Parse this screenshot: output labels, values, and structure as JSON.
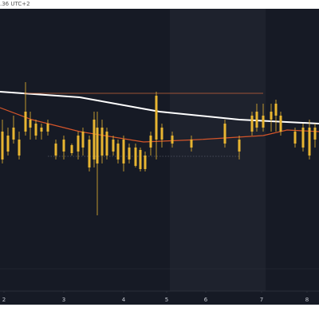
{
  "chart_data": {
    "type": "candlestick",
    "header": ".36 UTC+2",
    "xlim": [
      0,
      400
    ],
    "ylim": [
      0,
      372
    ],
    "xticks": [
      {
        "value": 5,
        "label": "2"
      },
      {
        "value": 80,
        "label": "3"
      },
      {
        "value": 155,
        "label": "4"
      },
      {
        "value": 209,
        "label": "5"
      },
      {
        "value": 258,
        "label": "6"
      },
      {
        "value": 328,
        "label": "7"
      },
      {
        "value": 385,
        "label": "8"
      }
    ],
    "color": "#e8b531",
    "x": [
      3,
      10,
      17,
      24,
      32,
      38,
      45,
      52,
      60,
      70,
      80,
      90,
      98,
      104,
      112,
      118,
      122,
      128,
      134,
      142,
      148,
      155,
      162,
      170,
      176,
      182,
      189,
      196,
      203,
      216,
      240,
      282,
      300,
      316,
      322,
      330,
      340,
      346,
      352,
      370,
      380,
      388,
      395
    ],
    "open": [
      217,
      212,
      222,
      207,
      242,
      232,
      227,
      222,
      227,
      202,
      207,
      200,
      212,
      217,
      207,
      232,
      222,
      222,
      217,
      207,
      202,
      207,
      197,
      197,
      194,
      187,
      212,
      262,
      222,
      212,
      207,
      227,
      207,
      237,
      242,
      237,
      242,
      252,
      237,
      217,
      222,
      222,
      222
    ],
    "high": [
      232,
      222,
      237,
      217,
      279,
      242,
      232,
      227,
      232,
      207,
      212,
      202,
      217,
      222,
      212,
      242,
      242,
      232,
      222,
      212,
      207,
      212,
      202,
      202,
      197,
      192,
      217,
      267,
      227,
      217,
      212,
      232,
      212,
      242,
      252,
      252,
      252,
      257,
      242,
      222,
      227,
      232,
      227
    ],
    "low": [
      177,
      187,
      202,
      182,
      212,
      207,
      207,
      207,
      212,
      182,
      182,
      187,
      182,
      187,
      167,
      172,
      112,
      177,
      182,
      187,
      177,
      167,
      177,
      172,
      167,
      167,
      187,
      182,
      197,
      197,
      192,
      197,
      182,
      212,
      217,
      217,
      217,
      217,
      212,
      197,
      192,
      182,
      197
    ],
    "close": [
      182,
      192,
      207,
      187,
      217,
      222,
      212,
      217,
      217,
      187,
      192,
      190,
      192,
      197,
      172,
      182,
      177,
      187,
      187,
      192,
      182,
      177,
      182,
      174,
      170,
      170,
      197,
      207,
      207,
      202,
      197,
      202,
      192,
      217,
      222,
      222,
      232,
      237,
      217,
      202,
      197,
      187,
      207
    ],
    "lines": [
      {
        "color": "#ffffff",
        "x": [
          0,
          100,
          200,
          300,
          400
        ],
        "values": [
          267,
          260,
          242,
          232,
          227
        ]
      },
      {
        "color": "#d4552a",
        "x": [
          0,
          40,
          100,
          180,
          250,
          330,
          360,
          400
        ],
        "values": [
          247,
          232,
          217,
          204,
          207,
          212,
          219,
          217
        ]
      },
      {
        "color": "#c8643a",
        "x": [
          30,
          330
        ],
        "values": [
          265,
          265
        ]
      }
    ]
  }
}
